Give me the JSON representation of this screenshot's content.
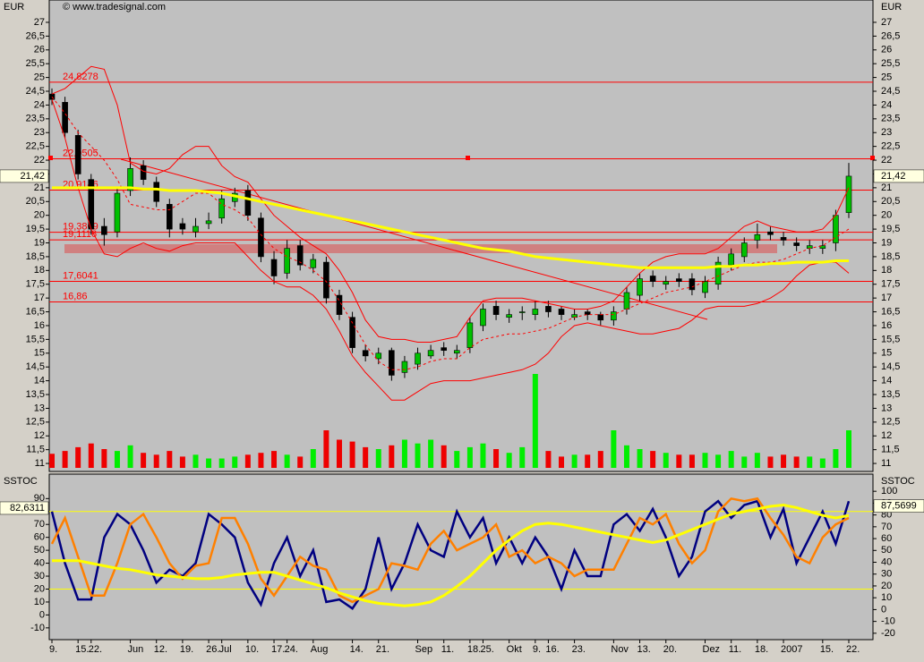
{
  "chart_data": [
    {
      "type": "candlestick",
      "axis_label": "EUR",
      "watermark": "© www.tradesignal.com",
      "categories": [
        "9.",
        null,
        "15.",
        "22.",
        null,
        null,
        "Jun",
        null,
        "12.",
        null,
        "19.",
        null,
        "26.",
        "Jul",
        null,
        "10.",
        null,
        "17.",
        "24.",
        null,
        "Aug",
        null,
        null,
        "14.",
        null,
        "21.",
        null,
        null,
        "Sep",
        null,
        "11.",
        null,
        "18.",
        "25.",
        null,
        "Okt",
        null,
        "9.",
        "16.",
        null,
        "23.",
        null,
        null,
        "Nov",
        null,
        "13.",
        null,
        "20.",
        null,
        null,
        "Dez",
        null,
        "11.",
        null,
        "18.",
        null,
        "2007",
        null,
        null,
        "15.",
        null,
        "22."
      ],
      "open": [
        24.4,
        24.1,
        22.9,
        21.3,
        19.6,
        19.4,
        20.9,
        21.8,
        21.2,
        20.4,
        19.7,
        19.4,
        19.7,
        19.9,
        20.5,
        20.9,
        19.9,
        18.4,
        17.9,
        18.9,
        18.1,
        18.3,
        17.1,
        16.3,
        15.1,
        14.8,
        15.1,
        14.3,
        14.6,
        14.9,
        15.2,
        15.0,
        15.2,
        16.0,
        16.7,
        16.3,
        16.5,
        16.4,
        16.7,
        16.6,
        16.3,
        16.5,
        16.4,
        16.2,
        16.6,
        17.1,
        17.8,
        17.5,
        17.7,
        17.7,
        17.2,
        17.5,
        18.2,
        18.5,
        19.1,
        19.4,
        19.2,
        19.0,
        18.8,
        18.8,
        19.0,
        20.1
      ],
      "high": [
        24.6,
        24.3,
        23.1,
        21.5,
        19.9,
        21.0,
        22.1,
        22.0,
        21.4,
        20.6,
        19.9,
        19.9,
        20.1,
        20.9,
        21.0,
        21.1,
        20.1,
        18.7,
        19.1,
        19.1,
        18.6,
        18.5,
        17.3,
        16.5,
        15.3,
        15.2,
        15.2,
        14.9,
        15.2,
        15.3,
        15.4,
        15.3,
        16.3,
        16.8,
        16.9,
        16.6,
        16.7,
        16.9,
        16.9,
        16.7,
        16.6,
        16.6,
        16.5,
        16.7,
        17.4,
        17.9,
        18.0,
        17.8,
        17.9,
        17.9,
        17.8,
        18.5,
        18.8,
        19.2,
        19.7,
        19.6,
        19.4,
        19.2,
        19.1,
        19.1,
        20.2,
        21.9
      ],
      "low": [
        24.0,
        22.8,
        21.3,
        19.3,
        18.9,
        19.2,
        20.7,
        21.1,
        20.3,
        19.2,
        19.3,
        19.2,
        19.5,
        19.7,
        20.3,
        19.8,
        18.3,
        17.5,
        17.7,
        18.0,
        17.9,
        16.8,
        16.2,
        15.0,
        14.7,
        14.6,
        14.0,
        14.1,
        14.4,
        14.8,
        14.9,
        14.8,
        15.0,
        15.8,
        16.2,
        16.1,
        16.2,
        16.2,
        16.3,
        16.2,
        16.2,
        16.2,
        16.0,
        16.0,
        16.4,
        16.9,
        17.4,
        17.3,
        17.4,
        17.1,
        17.0,
        17.3,
        18.0,
        18.3,
        18.8,
        19.1,
        18.9,
        18.7,
        18.6,
        18.6,
        18.7,
        19.9
      ],
      "close": [
        24.2,
        23.0,
        21.5,
        19.5,
        19.3,
        20.8,
        21.7,
        21.3,
        20.5,
        19.5,
        19.5,
        19.6,
        19.8,
        20.6,
        20.8,
        20.0,
        18.5,
        17.8,
        18.8,
        18.2,
        18.4,
        17.0,
        16.4,
        15.2,
        14.9,
        15.0,
        14.2,
        14.7,
        15.0,
        15.1,
        15.1,
        15.1,
        16.1,
        16.6,
        16.4,
        16.4,
        16.5,
        16.6,
        16.5,
        16.4,
        16.4,
        16.4,
        16.2,
        16.5,
        17.2,
        17.7,
        17.6,
        17.6,
        17.6,
        17.3,
        17.6,
        18.3,
        18.6,
        19.0,
        19.3,
        19.3,
        19.1,
        18.9,
        18.9,
        18.9,
        20.0,
        21.42
      ],
      "up_color": "#00c000",
      "down_color": "#000000",
      "volume": {
        "up_color": "#00ee00",
        "down_color": "#ee0000",
        "values": [
          15,
          18,
          22,
          26,
          20,
          18,
          24,
          16,
          14,
          18,
          12,
          14,
          10,
          10,
          12,
          14,
          16,
          18,
          14,
          12,
          20,
          40,
          30,
          28,
          22,
          20,
          24,
          30,
          26,
          30,
          24,
          18,
          22,
          26,
          20,
          16,
          22,
          100,
          18,
          12,
          14,
          14,
          18,
          40,
          24,
          20,
          18,
          16,
          14,
          14,
          16,
          14,
          18,
          12,
          16,
          12,
          14,
          12,
          12,
          10,
          20,
          40
        ]
      },
      "series": [
        {
          "color": "#ff0000",
          "values": [
            24.4,
            24.6,
            25.0,
            25.4,
            25.3,
            24.0,
            21.9,
            21.6,
            21.5,
            21.7,
            22.2,
            22.5,
            22.5,
            21.8,
            21.4,
            21.2,
            20.6,
            20.0,
            19.6,
            19.2,
            18.9,
            18.6,
            18.0,
            17.2,
            16.2,
            15.6,
            15.5,
            15.5,
            15.4,
            15.4,
            15.5,
            15.6,
            16.3,
            16.9,
            17.0,
            17.0,
            17.0,
            16.9,
            16.8,
            16.7,
            16.6,
            16.6,
            16.7,
            16.9,
            17.4,
            17.9,
            18.3,
            18.5,
            18.6,
            18.6,
            18.6,
            18.8,
            19.2,
            19.6,
            19.8,
            19.6,
            19.5,
            19.4,
            19.4,
            19.5,
            20.0,
            21.0
          ]
        },
        {
          "color": "#ff0000",
          "values": [
            24.2,
            22.8,
            21.0,
            19.5,
            18.6,
            18.5,
            18.8,
            19.0,
            18.8,
            18.7,
            18.9,
            19.0,
            19.0,
            19.0,
            19.0,
            18.5,
            18.0,
            17.6,
            17.4,
            17.4,
            17.1,
            16.6,
            15.8,
            14.9,
            14.3,
            13.8,
            13.3,
            13.3,
            13.6,
            13.9,
            14.0,
            14.0,
            14.0,
            14.1,
            14.2,
            14.3,
            14.4,
            14.6,
            15.0,
            15.6,
            16.0,
            16.1,
            16.0,
            15.9,
            15.8,
            15.7,
            15.7,
            15.8,
            15.9,
            16.2,
            16.6,
            16.7,
            16.7,
            16.7,
            16.8,
            17.0,
            17.3,
            17.8,
            18.2,
            18.3,
            18.3,
            17.9
          ]
        },
        {
          "color": "#ff0000",
          "dashed": true,
          "values": [
            24.3,
            23.7,
            23.0,
            22.5,
            22.0,
            21.3,
            20.4,
            20.3,
            20.2,
            20.2,
            20.5,
            20.8,
            20.8,
            20.4,
            20.2,
            19.9,
            19.3,
            18.8,
            18.5,
            18.3,
            18.0,
            17.6,
            16.9,
            16.1,
            15.3,
            14.7,
            14.4,
            14.4,
            14.5,
            14.7,
            14.8,
            14.8,
            15.2,
            15.5,
            15.6,
            15.7,
            15.7,
            15.8,
            15.9,
            16.1,
            16.3,
            16.4,
            16.4,
            16.4,
            16.6,
            16.8,
            17.0,
            17.2,
            17.3,
            17.4,
            17.6,
            17.8,
            18.0,
            18.2,
            18.3,
            18.3,
            18.4,
            18.6,
            18.8,
            18.9,
            19.2,
            19.5
          ]
        },
        {
          "color": "#ffff00",
          "width": 3,
          "values": [
            21.0,
            21.0,
            21.0,
            21.0,
            21.0,
            21.0,
            21.0,
            20.95,
            20.95,
            20.9,
            20.9,
            20.9,
            20.85,
            20.8,
            20.7,
            20.6,
            20.5,
            20.4,
            20.3,
            20.2,
            20.1,
            20.0,
            19.9,
            19.8,
            19.7,
            19.6,
            19.5,
            19.4,
            19.3,
            19.2,
            19.1,
            19.0,
            18.9,
            18.8,
            18.75,
            18.7,
            18.6,
            18.5,
            18.45,
            18.4,
            18.35,
            18.3,
            18.25,
            18.2,
            18.15,
            18.1,
            18.1,
            18.1,
            18.1,
            18.1,
            18.1,
            18.15,
            18.15,
            18.2,
            18.2,
            18.25,
            18.25,
            18.3,
            18.3,
            18.3,
            18.35,
            18.35
          ]
        }
      ],
      "levels": [
        {
          "value": 24.8278,
          "label": "24,8278"
        },
        {
          "value": 22.0505,
          "label": "22,0505"
        },
        {
          "value": 20.9146,
          "label": "20,9146"
        },
        {
          "value": 19.3869,
          "label": "19,3869"
        },
        {
          "value": 19.1116,
          "label": "19,1116"
        },
        {
          "value": 17.6041,
          "label": "17,6041"
        },
        {
          "value": 16.86,
          "label": "16,86"
        }
      ],
      "level_color": "#ff0000",
      "last": {
        "value": 21.42,
        "label": "21,42"
      },
      "ylim": [
        10.71,
        27.81
      ],
      "yticks": [
        11,
        {
          "value": 11.5,
          "label": "11,5"
        },
        12,
        {
          "value": 12.5,
          "label": "12,5"
        },
        13,
        {
          "value": 13.5,
          "label": "13,5"
        },
        14,
        {
          "value": 14.5,
          "label": "14,5"
        },
        15,
        {
          "value": 15.5,
          "label": "15,5"
        },
        16,
        {
          "value": 16.5,
          "label": "16,5"
        },
        17,
        {
          "value": 17.5,
          "label": "17,5"
        },
        18,
        {
          "value": 18.5,
          "label": "18,5"
        },
        19,
        {
          "value": 19.5,
          "label": "19,5"
        },
        20,
        {
          "value": 20.5,
          "label": "20,5"
        },
        21,
        {
          "value": 21.5,
          "label": "21,5"
        },
        22,
        {
          "value": 22.5,
          "label": "22,5"
        },
        23,
        {
          "value": 23.5,
          "label": "23,5"
        },
        24,
        {
          "value": 24.5,
          "label": "24,5"
        },
        25,
        {
          "value": 25.5,
          "label": "25,5"
        },
        26,
        {
          "value": 26.5,
          "label": "26,5"
        },
        27
      ]
    },
    {
      "type": "line",
      "title": "SSTOC",
      "ylim": [
        -19.1,
        108.9
      ],
      "yticks": [
        -10,
        0,
        10,
        20,
        30,
        40,
        50,
        60,
        70,
        80,
        90
      ],
      "y2lim": [
        -25.4,
        114.5
      ],
      "y2ticks": [
        -20,
        -10,
        0,
        10,
        20,
        30,
        40,
        50,
        60,
        70,
        80,
        90,
        100
      ],
      "levels": [
        80,
        20
      ],
      "level_color": "#ffff00",
      "last": {
        "value": 82.6311,
        "label": "82,6311"
      },
      "last2": {
        "value": 87.5699,
        "label": "87,5699",
        "axis": "y2"
      },
      "series": [
        {
          "color": "#000080",
          "width": 2.5,
          "values": [
            80,
            40,
            12,
            12,
            60,
            78,
            70,
            50,
            25,
            35,
            30,
            40,
            78,
            70,
            60,
            25,
            8,
            40,
            60,
            30,
            50,
            10,
            12,
            5,
            20,
            60,
            20,
            40,
            70,
            50,
            45,
            80,
            60,
            75,
            40,
            60,
            40,
            60,
            45,
            20,
            50,
            30,
            30,
            70,
            78,
            65,
            82,
            60,
            30,
            45,
            80,
            88,
            75,
            85,
            88,
            60,
            82,
            40,
            60,
            80,
            55,
            88
          ]
        },
        {
          "color": "#ff8000",
          "width": 2.5,
          "values": [
            55,
            75,
            45,
            15,
            15,
            40,
            70,
            78,
            60,
            40,
            28,
            38,
            40,
            75,
            75,
            55,
            28,
            15,
            30,
            45,
            38,
            35,
            15,
            10,
            15,
            20,
            40,
            38,
            35,
            55,
            65,
            50,
            55,
            60,
            70,
            45,
            50,
            40,
            45,
            40,
            30,
            35,
            35,
            35,
            55,
            75,
            70,
            78,
            55,
            40,
            50,
            80,
            90,
            88,
            90,
            75,
            62,
            45,
            40,
            60,
            70,
            75
          ]
        },
        {
          "color": "#ffff00",
          "width": 3,
          "values": [
            42,
            42,
            42,
            40,
            38,
            36,
            35,
            33,
            31,
            30,
            29,
            28,
            28,
            29,
            31,
            32,
            33,
            33,
            30,
            27,
            24,
            21,
            17,
            14,
            11,
            9,
            8,
            7,
            8,
            10,
            15,
            22,
            30,
            40,
            50,
            58,
            65,
            70,
            71,
            70,
            68,
            66,
            64,
            62,
            60,
            58,
            56,
            58,
            62,
            66,
            70,
            74,
            78,
            80,
            82,
            84,
            85,
            83,
            80,
            77,
            75,
            77
          ]
        }
      ]
    }
  ]
}
